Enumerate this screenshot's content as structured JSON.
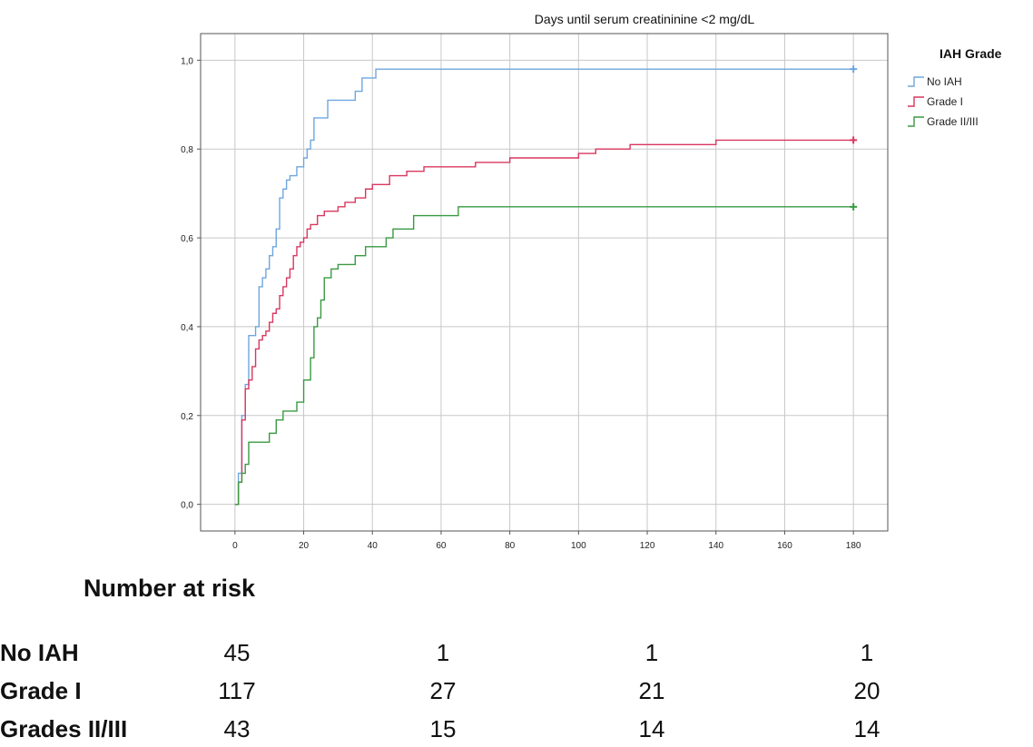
{
  "chart_data": {
    "type": "line",
    "title": "Days until serum creatininine <2 mg/dL",
    "xlabel": "",
    "ylabel": "",
    "xlim": [
      -10,
      190
    ],
    "ylim": [
      -0.06,
      1.06
    ],
    "x_ticks": [
      "0",
      "20",
      "40",
      "60",
      "80",
      "100",
      "120",
      "140",
      "160",
      "180"
    ],
    "x_tick_values": [
      0,
      20,
      40,
      60,
      80,
      100,
      120,
      140,
      160,
      180
    ],
    "y_ticks": [
      "0,0",
      "0,2",
      "0,4",
      "0,6",
      "0,8",
      "1,0"
    ],
    "y_tick_values": [
      0,
      0.2,
      0.4,
      0.6,
      0.8,
      1.0
    ],
    "grid": true,
    "step": true,
    "legend": {
      "title": "IAH Grade",
      "position": "top-right"
    },
    "series": [
      {
        "name": "No IAH",
        "color": "#6fa6de",
        "x": [
          0,
          1,
          2,
          3,
          4,
          5,
          6,
          7,
          8,
          9,
          10,
          11,
          12,
          13,
          14,
          15,
          16,
          18,
          20,
          21,
          22,
          23,
          25,
          27,
          30,
          35,
          37,
          41,
          180
        ],
        "y": [
          0,
          0.07,
          0.2,
          0.27,
          0.38,
          0.38,
          0.4,
          0.49,
          0.51,
          0.53,
          0.56,
          0.58,
          0.62,
          0.69,
          0.71,
          0.73,
          0.74,
          0.76,
          0.78,
          0.8,
          0.82,
          0.87,
          0.87,
          0.91,
          0.91,
          0.93,
          0.96,
          0.98,
          0.98
        ]
      },
      {
        "name": "Grade I",
        "color": "#d9375f",
        "x": [
          0,
          1,
          2,
          3,
          4,
          5,
          6,
          7,
          8,
          9,
          10,
          11,
          12,
          13,
          14,
          15,
          16,
          17,
          18,
          19,
          20,
          21,
          22,
          24,
          26,
          28,
          30,
          32,
          35,
          38,
          40,
          45,
          50,
          55,
          70,
          80,
          90,
          100,
          105,
          115,
          140,
          180
        ],
        "y": [
          0,
          0.05,
          0.19,
          0.26,
          0.28,
          0.31,
          0.35,
          0.37,
          0.38,
          0.39,
          0.41,
          0.43,
          0.44,
          0.47,
          0.49,
          0.51,
          0.53,
          0.56,
          0.58,
          0.59,
          0.6,
          0.62,
          0.63,
          0.65,
          0.66,
          0.66,
          0.67,
          0.68,
          0.69,
          0.71,
          0.72,
          0.74,
          0.75,
          0.76,
          0.77,
          0.78,
          0.78,
          0.79,
          0.8,
          0.81,
          0.82,
          0.82
        ]
      },
      {
        "name": "Grade II/III",
        "color": "#3a9a42",
        "x": [
          0,
          1,
          2,
          3,
          4,
          6,
          8,
          10,
          12,
          14,
          16,
          18,
          20,
          22,
          23,
          24,
          25,
          26,
          28,
          30,
          33,
          35,
          38,
          40,
          44,
          46,
          52,
          65,
          180
        ],
        "y": [
          0,
          0.05,
          0.07,
          0.09,
          0.14,
          0.14,
          0.14,
          0.16,
          0.19,
          0.21,
          0.21,
          0.23,
          0.28,
          0.33,
          0.4,
          0.42,
          0.46,
          0.51,
          0.53,
          0.54,
          0.54,
          0.56,
          0.58,
          0.58,
          0.6,
          0.62,
          0.65,
          0.67,
          0.67
        ]
      }
    ]
  },
  "risk_table": {
    "title": "Number at risk",
    "rows": [
      {
        "label": "No IAH",
        "values": [
          "45",
          "1",
          "1",
          "1"
        ]
      },
      {
        "label": "Grade I",
        "values": [
          "117",
          "27",
          "21",
          "20"
        ]
      },
      {
        "label": "Grades II/III",
        "values": [
          "43",
          "15",
          "14",
          "14"
        ]
      }
    ]
  }
}
